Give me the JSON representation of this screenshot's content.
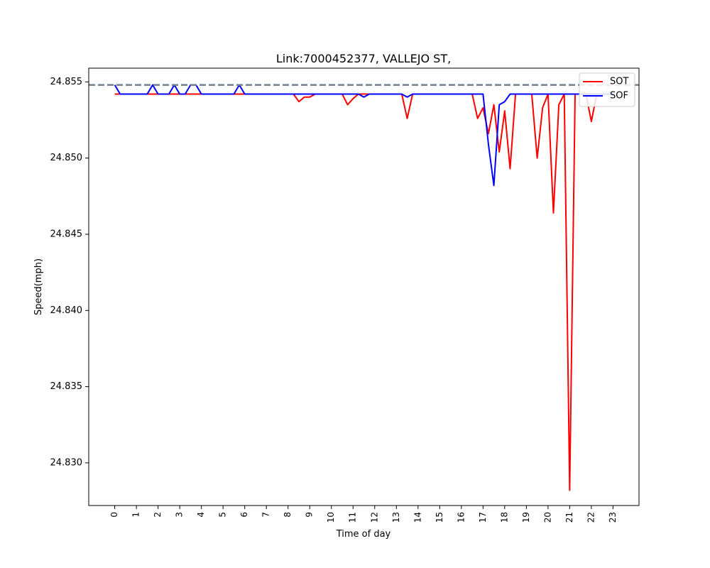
{
  "chart_data": {
    "type": "line",
    "title": "Link:7000452377, VALLEJO ST,",
    "xlabel": "Time of day",
    "ylabel": "Speed(mph)",
    "xlim": [
      -1.2,
      24.2
    ],
    "ylim": [
      24.8272,
      24.8559
    ],
    "x_ticks": [
      0,
      1,
      2,
      3,
      4,
      5,
      6,
      7,
      8,
      9,
      10,
      11,
      12,
      13,
      14,
      15,
      16,
      17,
      18,
      19,
      20,
      21,
      22,
      23
    ],
    "y_ticks": [
      24.83,
      24.835,
      24.84,
      24.845,
      24.85,
      24.855
    ],
    "y_tick_labels": [
      "24.830",
      "24.835",
      "24.840",
      "24.845",
      "24.850",
      "24.855"
    ],
    "reference_line": {
      "y": 24.8548,
      "style": "dashed",
      "color": "#708090"
    },
    "legend": {
      "placement": "top-right"
    },
    "grid": false,
    "series": [
      {
        "name": "SOT",
        "color": "#ff0000",
        "x": [
          0,
          0.25,
          0.5,
          0.75,
          1,
          1.25,
          1.5,
          1.75,
          2,
          2.25,
          2.5,
          2.75,
          3,
          3.25,
          3.5,
          3.75,
          4,
          4.25,
          4.5,
          4.75,
          5,
          5.25,
          5.5,
          5.75,
          6,
          6.25,
          6.5,
          6.75,
          7,
          7.25,
          7.5,
          7.75,
          8,
          8.25,
          8.5,
          8.75,
          9,
          9.25,
          9.5,
          9.75,
          10,
          10.25,
          10.5,
          10.75,
          11,
          11.25,
          11.5,
          11.75,
          12,
          12.25,
          12.5,
          12.75,
          13,
          13.25,
          13.5,
          13.75,
          14,
          14.25,
          14.5,
          14.75,
          15,
          15.25,
          15.5,
          15.75,
          16,
          16.25,
          16.5,
          16.75,
          17,
          17.25,
          17.5,
          17.75,
          18,
          18.25,
          18.5,
          18.75,
          19,
          19.25,
          19.5,
          19.75,
          20,
          20.25,
          20.5,
          20.75,
          21,
          21.25,
          21.5,
          21.75,
          22,
          22.25,
          22.5,
          22.75,
          23
        ],
        "values": [
          24.8542,
          24.8542,
          24.8542,
          24.8542,
          24.8542,
          24.8542,
          24.8542,
          24.8542,
          24.8542,
          24.8542,
          24.8542,
          24.8542,
          24.8542,
          24.8542,
          24.8542,
          24.8542,
          24.8542,
          24.8542,
          24.8542,
          24.8542,
          24.8542,
          24.8542,
          24.8542,
          24.8542,
          24.8542,
          24.8542,
          24.8542,
          24.8542,
          24.8542,
          24.8542,
          24.8542,
          24.8542,
          24.8542,
          24.8542,
          24.8537,
          24.854,
          24.854,
          24.8542,
          24.8542,
          24.8542,
          24.8542,
          24.8542,
          24.8542,
          24.8535,
          24.8539,
          24.8542,
          24.8542,
          24.8542,
          24.8542,
          24.8542,
          24.8542,
          24.8542,
          24.8542,
          24.8542,
          24.8526,
          24.8542,
          24.8542,
          24.8542,
          24.8542,
          24.8542,
          24.8542,
          24.8542,
          24.8542,
          24.8542,
          24.8542,
          24.8542,
          24.8542,
          24.8526,
          24.8533,
          24.8516,
          24.8535,
          24.8504,
          24.8531,
          24.8493,
          24.8542,
          24.8542,
          24.8542,
          24.8542,
          24.85,
          24.8533,
          24.8542,
          24.8464,
          24.8535,
          24.8542,
          24.8282,
          24.8542,
          24.8542,
          24.8542,
          24.8524,
          24.8542,
          24.8542,
          24.8542,
          24.8542
        ]
      },
      {
        "name": "SOF",
        "color": "#0000ff",
        "x": [
          0,
          0.25,
          0.5,
          0.75,
          1,
          1.25,
          1.5,
          1.75,
          2,
          2.25,
          2.5,
          2.75,
          3,
          3.25,
          3.5,
          3.75,
          4,
          4.25,
          4.5,
          4.75,
          5,
          5.25,
          5.5,
          5.75,
          6,
          6.25,
          6.5,
          6.75,
          7,
          7.25,
          7.5,
          7.75,
          8,
          8.25,
          8.5,
          8.75,
          9,
          9.25,
          9.5,
          9.75,
          10,
          10.25,
          10.5,
          10.75,
          11,
          11.25,
          11.5,
          11.75,
          12,
          12.25,
          12.5,
          12.75,
          13,
          13.25,
          13.5,
          13.75,
          14,
          14.25,
          14.5,
          14.75,
          15,
          15.25,
          15.5,
          15.75,
          16,
          16.25,
          16.5,
          16.75,
          17,
          17.25,
          17.5,
          17.75,
          18,
          18.25,
          18.5,
          18.75,
          19,
          19.25,
          19.5,
          19.75,
          20,
          20.25,
          20.5,
          20.75,
          21,
          21.25,
          21.5,
          21.75,
          22,
          22.25,
          22.5,
          22.75,
          23
        ],
        "values": [
          24.8548,
          24.8542,
          24.8542,
          24.8542,
          24.8542,
          24.8542,
          24.8542,
          24.8548,
          24.8542,
          24.8542,
          24.8542,
          24.8548,
          24.8542,
          24.8542,
          24.8548,
          24.8548,
          24.8542,
          24.8542,
          24.8542,
          24.8542,
          24.8542,
          24.8542,
          24.8542,
          24.8548,
          24.8542,
          24.8542,
          24.8542,
          24.8542,
          24.8542,
          24.8542,
          24.8542,
          24.8542,
          24.8542,
          24.8542,
          24.8542,
          24.8542,
          24.8542,
          24.8542,
          24.8542,
          24.8542,
          24.8542,
          24.8542,
          24.8542,
          24.8542,
          24.8542,
          24.8542,
          24.854,
          24.8542,
          24.8542,
          24.8542,
          24.8542,
          24.8542,
          24.8542,
          24.8542,
          24.854,
          24.8542,
          24.8542,
          24.8542,
          24.8542,
          24.8542,
          24.8542,
          24.8542,
          24.8542,
          24.8542,
          24.8542,
          24.8542,
          24.8542,
          24.8542,
          24.8542,
          24.8509,
          24.8482,
          24.8535,
          24.8537,
          24.8542,
          24.8542,
          24.8542,
          24.8542,
          24.8542,
          24.8542,
          24.8542,
          24.8542,
          24.8542,
          24.8542,
          24.8542,
          24.8542,
          24.8542,
          24.8542,
          24.8542,
          24.8542,
          24.8542,
          24.8542,
          24.8542,
          24.8542
        ]
      }
    ]
  }
}
